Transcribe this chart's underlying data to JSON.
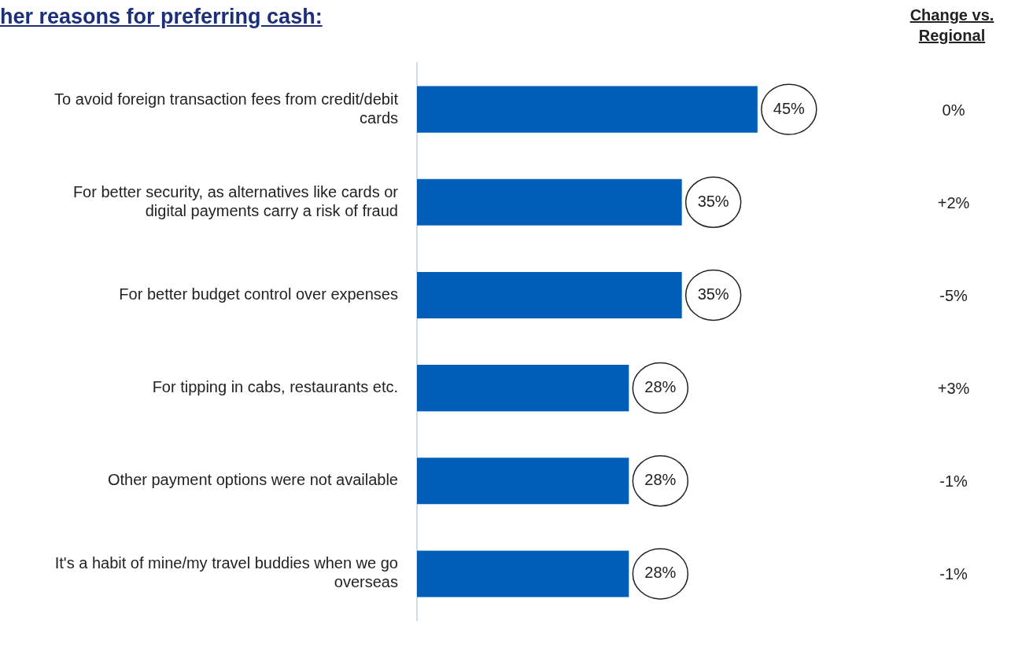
{
  "chart_data": {
    "type": "bar",
    "orientation": "horizontal",
    "title": "her reasons for preferring cash:",
    "categories": [
      "To avoid foreign transaction fees from credit/debit cards",
      "For better security, as alternatives like cards or digital payments carry a risk of fraud",
      "For better budget control over expenses",
      "For tipping in cabs, restaurants etc.",
      "Other payment options were not available",
      "It's a habit of mine/my travel buddies when we go overseas"
    ],
    "values": [
      45,
      35,
      35,
      28,
      28,
      28
    ],
    "value_labels": [
      "45%",
      "35%",
      "35%",
      "28%",
      "28%",
      "28%"
    ],
    "color": "#005eb8",
    "tick_labels": "y",
    "grid": false,
    "legend": false,
    "annotations": [
      "Change vs. Regional",
      "0%",
      "+2%",
      "-5%",
      "+3%",
      "-1%",
      "-1%"
    ]
  }
}
